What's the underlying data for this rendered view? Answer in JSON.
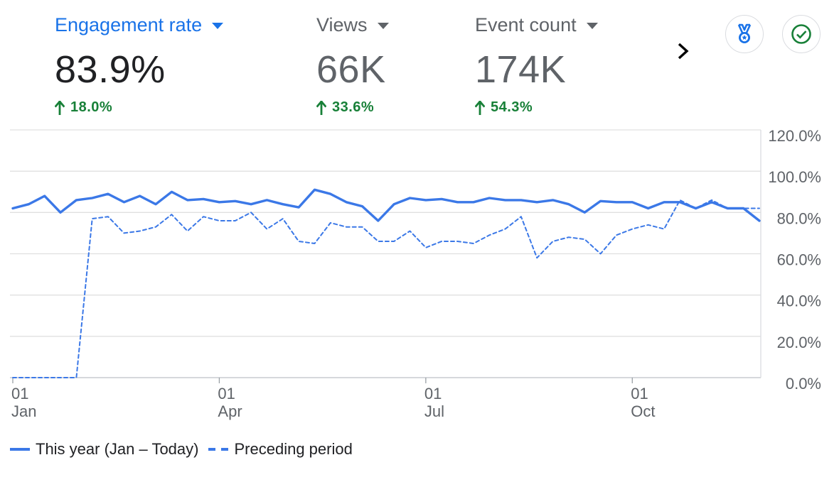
{
  "metrics": [
    {
      "title": "Engagement rate",
      "value": "83.9%",
      "change": "18.0%",
      "active": true
    },
    {
      "title": "Views",
      "value": "66K",
      "change": "33.6%",
      "active": false
    },
    {
      "title": "Event count",
      "value": "174K",
      "change": "54.3%",
      "active": false
    }
  ],
  "icons": {
    "next": "chevron-right-icon",
    "insights": "medal-icon",
    "status": "check-circle-icon"
  },
  "colors": {
    "accent": "#1a73e8",
    "series": "#3b78e7",
    "positive": "#188038",
    "muted": "#5f6368",
    "grid": "#e0e0e0"
  },
  "legend": {
    "this_year": "This year (Jan – Today)",
    "preceding": "Preceding period"
  },
  "chart_data": {
    "type": "line",
    "title": "Engagement rate",
    "ylim": [
      0,
      120
    ],
    "yticks": [
      "120.0%",
      "100.0%",
      "80.0%",
      "60.0%",
      "40.0%",
      "20.0%",
      "0.0%"
    ],
    "ytick_values": [
      120,
      100,
      80,
      60,
      40,
      20,
      0
    ],
    "xtick_day": [
      "01",
      "01",
      "01",
      "01"
    ],
    "xtick_month": [
      "Jan",
      "Apr",
      "Jul",
      "Oct"
    ],
    "xtick_week": [
      0,
      13,
      26,
      39
    ],
    "series": [
      {
        "name": "This year (Jan – Today)",
        "style": "solid",
        "values": [
          82,
          84,
          88,
          80,
          86,
          87,
          89,
          85,
          88,
          84,
          90,
          86,
          86.5,
          85,
          85.5,
          84,
          86,
          84,
          82.5,
          91,
          89,
          85,
          83,
          76,
          84,
          87,
          86,
          86.5,
          85,
          85,
          87,
          86,
          86,
          85,
          86,
          84,
          80,
          85.5,
          85,
          85,
          82,
          85,
          85,
          82,
          85,
          82,
          82,
          76
        ]
      },
      {
        "name": "Preceding period",
        "style": "dashed",
        "values": [
          0,
          0,
          0,
          0,
          0,
          77,
          78,
          70,
          71,
          73,
          79,
          71,
          78,
          76,
          76,
          80,
          72,
          77,
          66,
          65,
          75,
          73,
          73,
          66,
          66,
          71,
          63,
          66,
          66,
          65,
          69,
          72,
          78,
          58,
          66,
          68,
          67,
          60,
          69,
          72,
          74,
          72,
          86,
          82,
          86,
          82,
          82,
          82
        ]
      }
    ]
  }
}
